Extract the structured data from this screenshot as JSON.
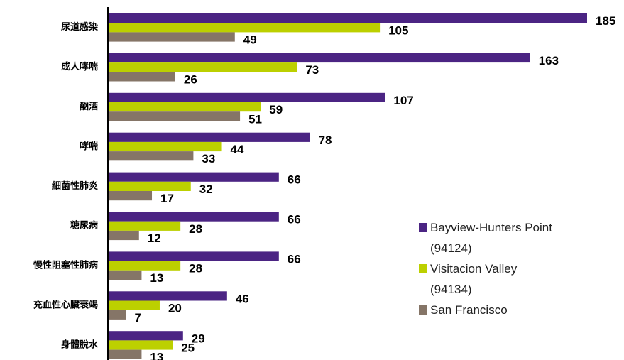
{
  "chart_data": {
    "type": "bar",
    "orientation": "horizontal",
    "categories": [
      "尿道感染",
      "成人哮喘",
      "酗酒",
      "哮喘",
      "細菌性肺炎",
      "糖尿病",
      "慢性阻塞性肺病",
      "充血性心臟衰竭",
      "身體脫水"
    ],
    "series": [
      {
        "name": "Bayview-Hunters Point (94124)",
        "color": "#4b2483",
        "values": [
          185,
          163,
          107,
          78,
          66,
          66,
          66,
          46,
          29
        ]
      },
      {
        "name": "Visitacion Valley (94134)",
        "color": "#bcd000",
        "values": [
          105,
          73,
          59,
          44,
          32,
          28,
          28,
          20,
          25
        ]
      },
      {
        "name": "San Francisco",
        "color": "#857567",
        "values": [
          49,
          26,
          51,
          33,
          17,
          12,
          13,
          7,
          13
        ]
      }
    ],
    "xlim": [
      0,
      185
    ]
  }
}
